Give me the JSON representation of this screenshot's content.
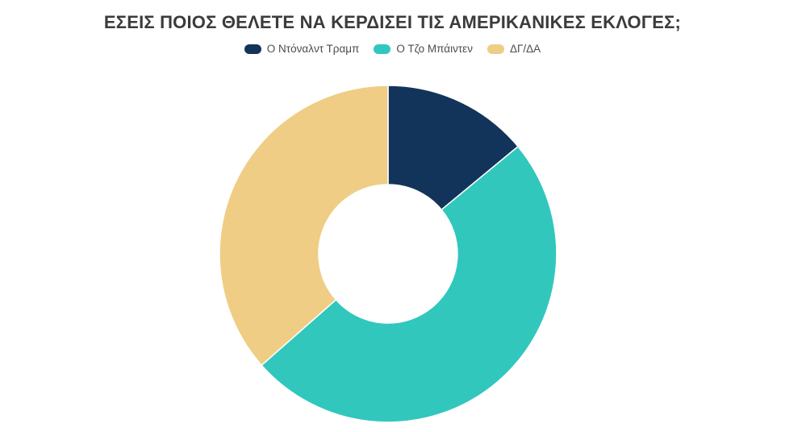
{
  "chart_data": {
    "type": "pie",
    "subtype": "donut",
    "title": "ΕΣΕΙΣ ΠΟΙΟΣ ΘΕΛΕΤΕ ΝΑ ΚΕΡΔΙΣΕΙ ΤΙΣ ΑΜΕΡΙΚΑΝΙΚΕΣ ΕΚΛΟΓΕΣ;",
    "legend_position": "top",
    "start_angle_deg": 0,
    "direction": "clockwise",
    "donut_hole_ratio": 0.41,
    "slices": [
      {
        "id": "trump",
        "label": "Ο Ντόναλντ Τραμπ",
        "value_pct": 14.0,
        "color": "#13345a"
      },
      {
        "id": "biden",
        "label": "Ο Τζο Μπάιντεν",
        "value_pct": 49.5,
        "color": "#31c7bd"
      },
      {
        "id": "dgda",
        "label": "ΔΓ/ΔΑ",
        "value_pct": 36.5,
        "color": "#efcd85"
      }
    ]
  },
  "colors": {
    "background": "#ffffff",
    "title_text": "#3b3b3b",
    "legend_text": "#4d4d4d",
    "slice_separator": "#ffffff"
  }
}
